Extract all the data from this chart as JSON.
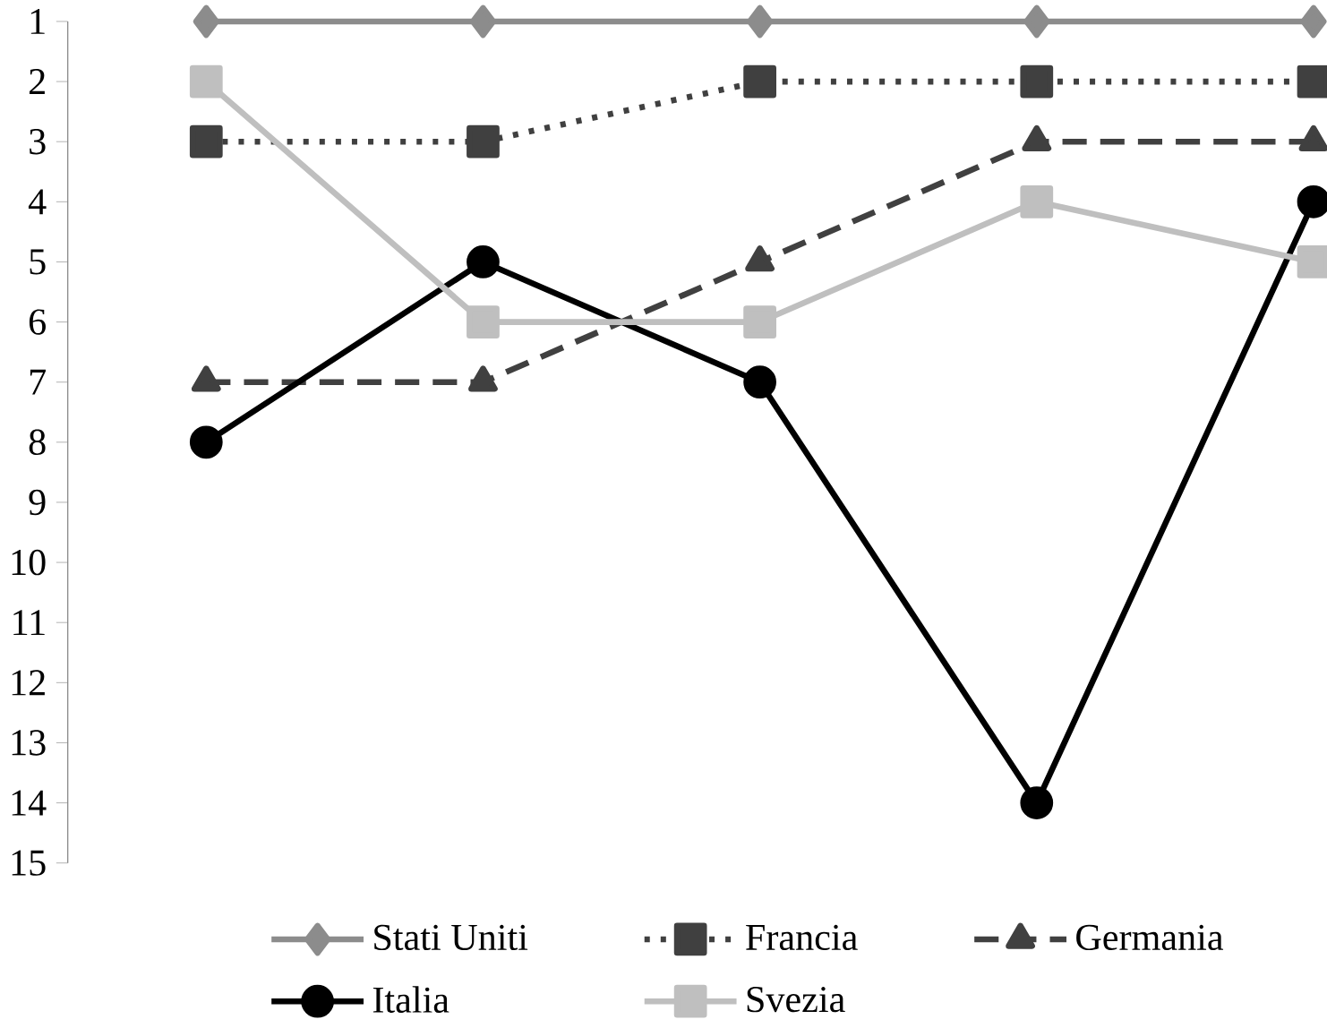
{
  "chart_data": {
    "type": "line",
    "categories": [
      null,
      null,
      null,
      null,
      null
    ],
    "ylim": [
      15,
      1
    ],
    "yticks": [
      1,
      2,
      3,
      4,
      5,
      6,
      7,
      8,
      9,
      10,
      11,
      12,
      13,
      14,
      15
    ],
    "grid": false,
    "legend": "bottom",
    "series": [
      {
        "name": "Stati Uniti",
        "color": "#8c8c8c",
        "marker": "diamond",
        "line_style": "solid",
        "values": [
          1,
          1,
          1,
          1,
          1
        ]
      },
      {
        "name": "Francia",
        "color": "#404040",
        "marker": "square",
        "line_style": "dotted",
        "values": [
          3,
          3,
          2,
          2,
          2
        ]
      },
      {
        "name": "Germania",
        "color": "#404040",
        "marker": "triangle",
        "line_style": "dashed",
        "values": [
          7,
          7,
          5,
          3,
          3
        ]
      },
      {
        "name": "Italia",
        "color": "#000000",
        "marker": "circle",
        "line_style": "solid",
        "values": [
          8,
          5,
          7,
          14,
          4
        ]
      },
      {
        "name": "Svezia",
        "color": "#bfbfbf",
        "marker": "square",
        "line_style": "solid",
        "values": [
          2,
          6,
          6,
          4,
          5
        ]
      }
    ]
  }
}
